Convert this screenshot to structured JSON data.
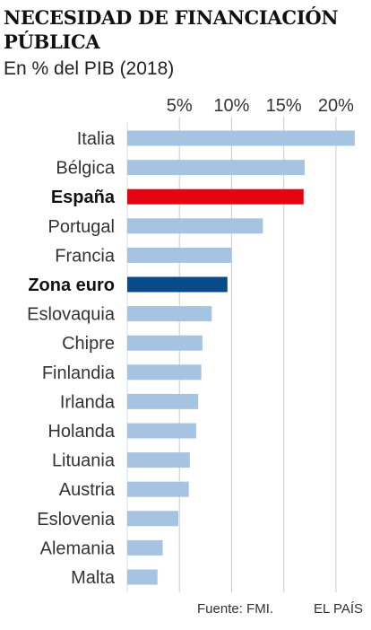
{
  "chart_data": {
    "type": "bar",
    "orientation": "horizontal",
    "title": "NECESIDAD DE FINANCIACIÓN PÚBLICA",
    "subtitle": "En % del PIB (2018)",
    "categories": [
      "Italia",
      "Bélgica",
      "España",
      "Portugal",
      "Francia",
      "Zona euro",
      "Eslovaquia",
      "Chipre",
      "Finlandia",
      "Irlanda",
      "Holanda",
      "Lituania",
      "Austria",
      "Eslovenia",
      "Alemania",
      "Malta"
    ],
    "values": [
      21.8,
      17.0,
      16.9,
      13.0,
      10.0,
      9.6,
      8.1,
      7.2,
      7.1,
      6.8,
      6.6,
      6.0,
      5.9,
      4.9,
      3.4,
      2.9
    ],
    "highlight": [
      "España",
      "Zona euro"
    ],
    "xlim": [
      0,
      22.5
    ],
    "ticks": [
      5,
      10,
      15,
      20
    ],
    "tick_labels": [
      "5%",
      "10%",
      "15%",
      "20%"
    ],
    "xlabel": "",
    "ylabel": "",
    "grid": true,
    "colors": {
      "default": "#a6c4e1",
      "España": "#e30513",
      "Zona euro": "#0a4a87",
      "grid": "#cccccc"
    }
  },
  "footer": {
    "source": "Fuente: FMI.",
    "brand": "EL PAÍS"
  }
}
